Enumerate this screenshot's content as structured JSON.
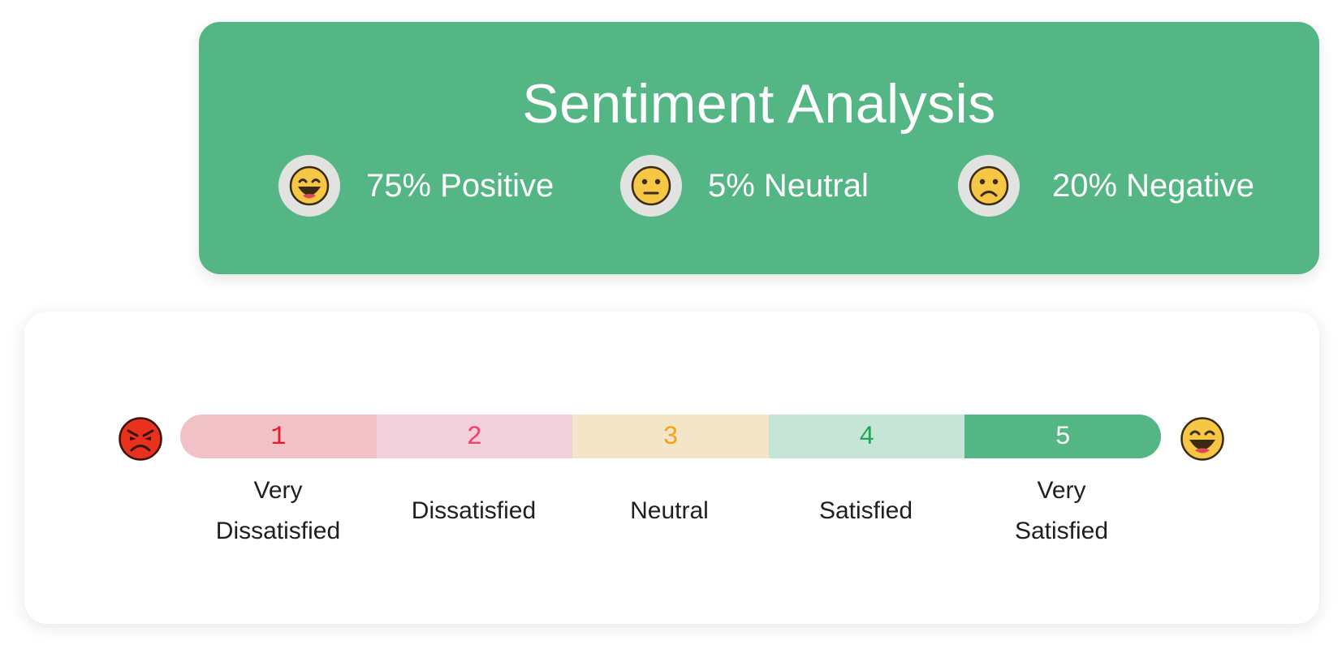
{
  "sentiment": {
    "title": "Sentiment Analysis",
    "stats": [
      {
        "icon": "grinning-face-icon",
        "label": "75% Positive"
      },
      {
        "icon": "neutral-face-icon",
        "label": "5% Neutral"
      },
      {
        "icon": "frowning-face-icon",
        "label": "20% Negative"
      }
    ],
    "card_color": "#55b685"
  },
  "scale": {
    "left_icon": "angry-face-icon",
    "right_icon": "grinning-face-icon",
    "segments": [
      {
        "number": "1",
        "label_lines": [
          "Very",
          "Dissatisfied"
        ],
        "bg": "#f0c2c7",
        "fg": "#e8192c"
      },
      {
        "number": "2",
        "label_lines": [
          "Dissatisfied"
        ],
        "bg": "#f1cfdb",
        "fg": "#f0426c"
      },
      {
        "number": "3",
        "label_lines": [
          "Neutral"
        ],
        "bg": "#f3e5c7",
        "fg": "#f2a416"
      },
      {
        "number": "4",
        "label_lines": [
          "Satisfied"
        ],
        "bg": "#c6e5d7",
        "fg": "#22a855"
      },
      {
        "number": "5",
        "label_lines": [
          "Very",
          "Satisfied"
        ],
        "bg": "#55b685",
        "fg": "#ffffff"
      }
    ]
  }
}
